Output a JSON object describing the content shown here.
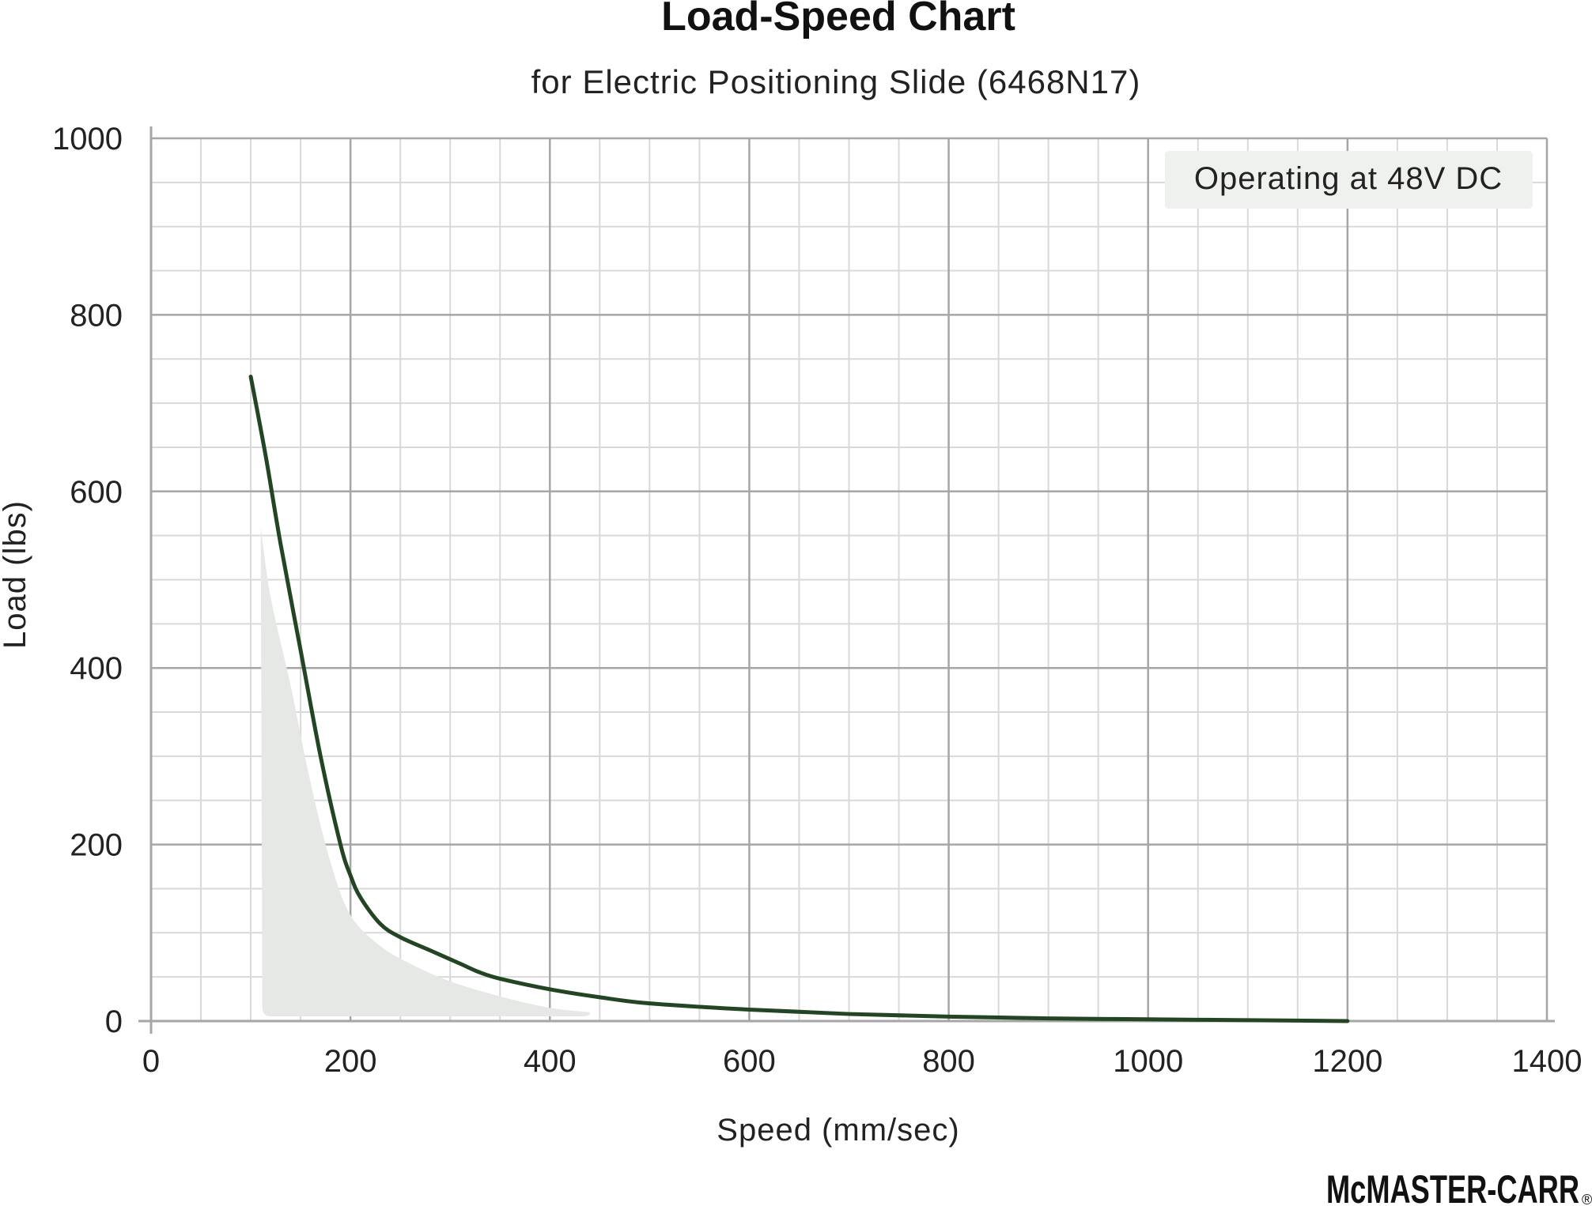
{
  "chart_data": {
    "type": "line",
    "title": "Load-Speed Chart",
    "subtitle": "for Electric Positioning Slide (6468N17)",
    "xlabel": "Speed (mm/sec)",
    "ylabel": "Load (lbs)",
    "xlim": [
      0,
      1400
    ],
    "ylim": [
      0,
      1000
    ],
    "x_ticks": [
      "0",
      "200",
      "400",
      "600",
      "800",
      "1000",
      "1200",
      "1400"
    ],
    "y_ticks": [
      "0",
      "200",
      "400",
      "600",
      "800",
      "1000"
    ],
    "grid": true,
    "annotation": "Operating at 48V DC",
    "annotation_placement": "top-right",
    "line_color": "#244524",
    "shadow_color": "#e6e8e5",
    "series": [
      {
        "x": [
          100,
          115,
          130,
          150,
          170,
          190,
          200,
          210,
          230,
          250,
          280,
          310,
          330,
          350,
          400,
          450,
          500,
          600,
          700,
          800,
          900,
          1000,
          1100,
          1200
        ],
        "y": [
          730,
          640,
          540,
          420,
          300,
          200,
          165,
          140,
          110,
          95,
          80,
          65,
          55,
          48,
          36,
          27,
          20,
          13,
          8,
          5,
          3,
          2,
          1,
          0
        ]
      }
    ],
    "shaded_region": {
      "x": [
        110,
        120,
        140,
        160,
        180,
        200,
        230,
        260,
        300,
        350,
        400,
        440
      ],
      "y": [
        560,
        480,
        380,
        270,
        180,
        120,
        85,
        65,
        45,
        28,
        15,
        10
      ]
    }
  },
  "logo": "McMASTER-CARR",
  "logo_mark": "®"
}
